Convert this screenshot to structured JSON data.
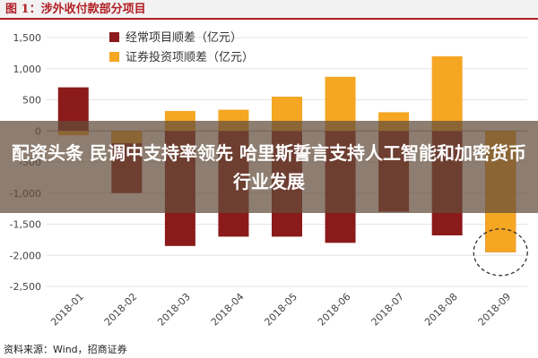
{
  "figure_title": "图 1：涉外收付款部分项目",
  "source": "资料来源：Wind，招商证券",
  "overlay": {
    "headline": "配资头条 民调中支持率领先 哈里斯誓言支持人工智能和加密货币行业发展"
  },
  "colors": {
    "trade_goods": "#8b1a1a",
    "securities": "#f5a623",
    "title_red": "#b21f24"
  },
  "chart_data": {
    "type": "bar",
    "categories": [
      "2018-01",
      "2018-02",
      "2018-03",
      "2018-04",
      "2018-05",
      "2018-06",
      "2018-07",
      "2018-08",
      "2018-09"
    ],
    "series": [
      {
        "name": "经常项目顺差（亿元）",
        "values": [
          700,
          -1000,
          -1850,
          -1700,
          -1700,
          -1800,
          -1300,
          -1680,
          -1950
        ]
      },
      {
        "name": "证券投资项顺差（亿元）",
        "values": [
          -70,
          -200,
          320,
          340,
          550,
          870,
          300,
          1200,
          -1950
        ]
      }
    ],
    "ylim": [
      -2500,
      1500
    ],
    "yticks": [
      1500,
      1000,
      500,
      0,
      -500,
      -1000,
      -1500,
      -2000,
      -2500
    ],
    "ytick_labels": [
      "1,500",
      "1,000",
      "500",
      "0",
      "-500",
      "-1,000",
      "-1,500",
      "-2,000",
      "-2,500"
    ],
    "legend_position": "top-left",
    "annotation": "dashed circle around 2018-09"
  }
}
